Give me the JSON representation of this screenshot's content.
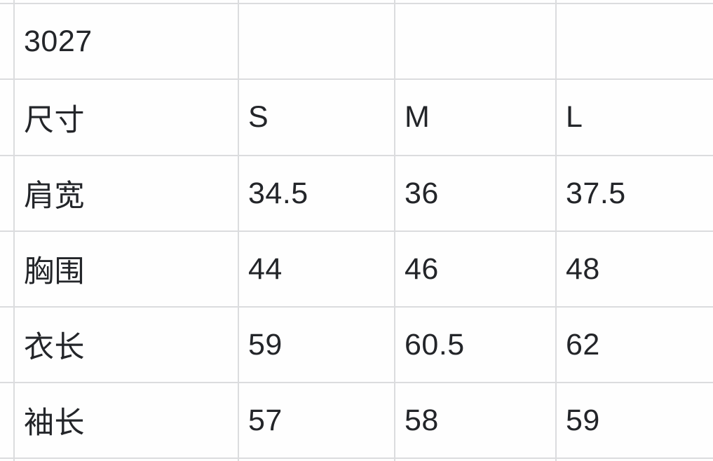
{
  "product": {
    "code": "3027"
  },
  "size_chart": {
    "corner_label": "尺寸",
    "sizes": [
      "S",
      "M",
      "L"
    ],
    "measurements": [
      {
        "label": "肩宽",
        "values": [
          "34.5",
          "36",
          "37.5"
        ]
      },
      {
        "label": "胸围",
        "values": [
          "44",
          "46",
          "48"
        ]
      },
      {
        "label": "衣长",
        "values": [
          "59",
          "60.5",
          "62"
        ]
      },
      {
        "label": "袖长",
        "values": [
          "57",
          "58",
          "59"
        ]
      }
    ]
  },
  "chart_data": {
    "type": "table",
    "product_code": "3027",
    "columns": [
      "尺寸",
      "S",
      "M",
      "L"
    ],
    "rows": [
      [
        "肩宽",
        34.5,
        36,
        37.5
      ],
      [
        "胸围",
        44,
        46,
        48
      ],
      [
        "衣长",
        59,
        60.5,
        62
      ],
      [
        "袖长",
        57,
        58,
        59
      ]
    ]
  },
  "colors": {
    "grid_line": "#dbdcde",
    "text": "#232529",
    "cell_bg": "#fefefe"
  }
}
